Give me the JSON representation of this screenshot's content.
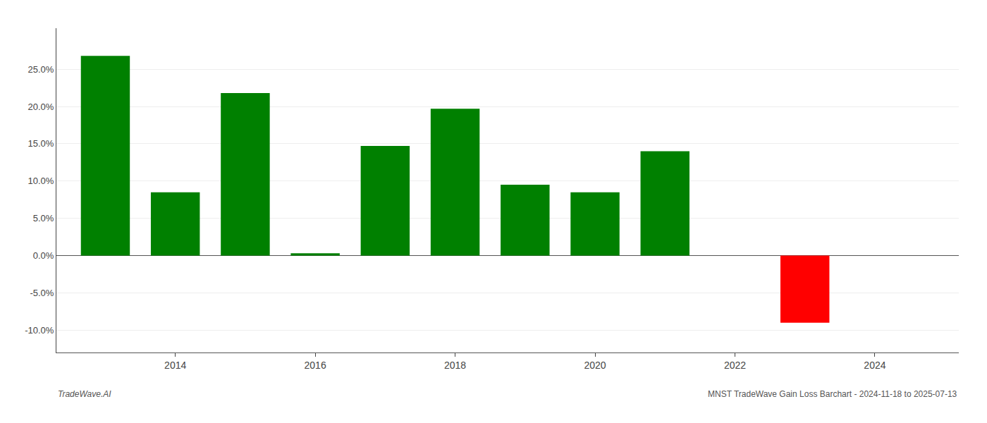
{
  "chart_data": {
    "type": "bar",
    "x": [
      2013,
      2014,
      2015,
      2016,
      2017,
      2018,
      2019,
      2020,
      2021,
      2023
    ],
    "values": [
      0.268,
      0.085,
      0.218,
      0.003,
      0.147,
      0.197,
      0.095,
      0.085,
      0.14,
      -0.09
    ],
    "colors": [
      "#008000",
      "#008000",
      "#008000",
      "#008000",
      "#008000",
      "#008000",
      "#008000",
      "#008000",
      "#008000",
      "#ff0000"
    ],
    "xlim": [
      2012.3,
      2025.2
    ],
    "xticks": [
      2014,
      2016,
      2018,
      2020,
      2022,
      2024
    ],
    "ylim": [
      -0.13,
      0.305
    ],
    "yticks": [
      {
        "value": -0.1,
        "label": "-10.0%"
      },
      {
        "value": -0.05,
        "label": "-5.0%"
      },
      {
        "value": 0.0,
        "label": "0.0%"
      },
      {
        "value": 0.05,
        "label": "5.0%"
      },
      {
        "value": 0.1,
        "label": "10.0%"
      },
      {
        "value": 0.15,
        "label": "15.0%"
      },
      {
        "value": 0.2,
        "label": "20.0%"
      },
      {
        "value": 0.25,
        "label": "25.0%"
      }
    ],
    "grid": true,
    "annotations": [
      "TradeWave.AI",
      "MNST TradeWave Gain Loss Barchart - 2024-11-18 to 2025-07-13"
    ]
  }
}
